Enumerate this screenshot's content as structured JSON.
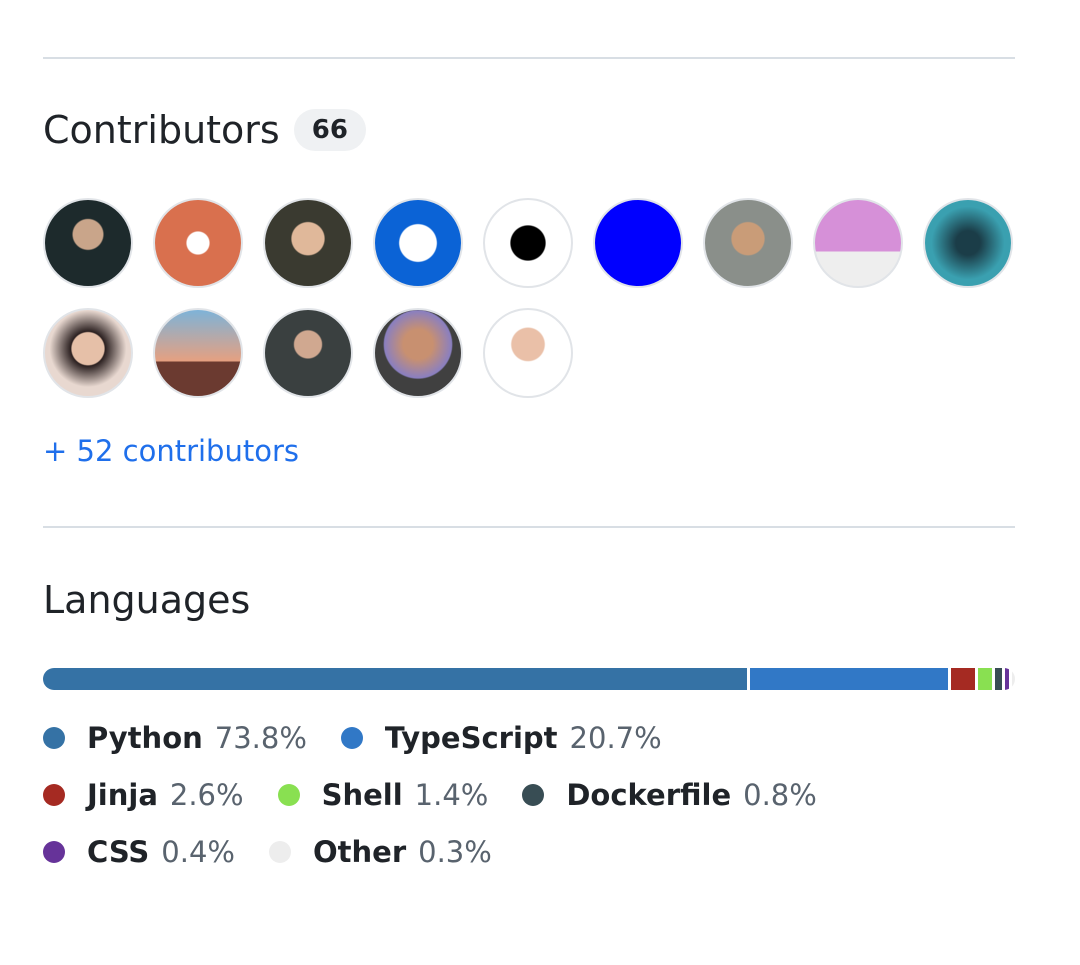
{
  "contributors": {
    "title": "Contributors",
    "count": "66",
    "more_link": "+ 52 contributors"
  },
  "languages": {
    "title": "Languages",
    "items": [
      {
        "name": "Python",
        "percent": 73.8,
        "percent_label": "73.8%",
        "color": "#3572A5"
      },
      {
        "name": "TypeScript",
        "percent": 20.7,
        "percent_label": "20.7%",
        "color": "#3178c6"
      },
      {
        "name": "Jinja",
        "percent": 2.6,
        "percent_label": "2.6%",
        "color": "#a52a22"
      },
      {
        "name": "Shell",
        "percent": 1.4,
        "percent_label": "1.4%",
        "color": "#89e051"
      },
      {
        "name": "Dockerfile",
        "percent": 0.8,
        "percent_label": "0.8%",
        "color": "#384d54"
      },
      {
        "name": "CSS",
        "percent": 0.4,
        "percent_label": "0.4%",
        "color": "#663399"
      },
      {
        "name": "Other",
        "percent": 0.3,
        "percent_label": "0.3%",
        "color": "#ededed"
      }
    ]
  }
}
